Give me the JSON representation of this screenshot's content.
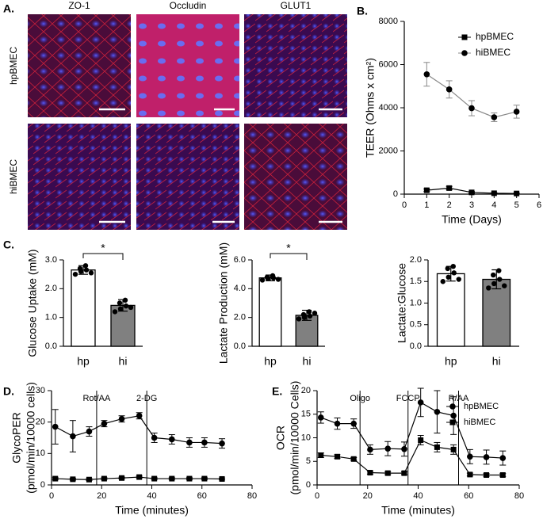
{
  "panel_a": {
    "label": "A.",
    "columns": [
      "ZO-1",
      "Occludin",
      "GLUT1"
    ],
    "rows": [
      "hpBMEC",
      "hiBMEC"
    ]
  },
  "chart_data": [
    {
      "type": "line",
      "panel_label": "B.",
      "x_label": "Time (Days)",
      "y_label": "TEER (Ohms x cm²)",
      "x": [
        1,
        2,
        3,
        4,
        5
      ],
      "xlim": [
        0,
        6
      ],
      "xticks": [
        0,
        1,
        2,
        3,
        4,
        5,
        6
      ],
      "ylim": [
        0,
        8000
      ],
      "yticks": [
        0,
        2000,
        4000,
        6000,
        8000
      ],
      "legend": "upper right",
      "series": [
        {
          "name": "hpBMEC",
          "marker": "square",
          "color": "#000000",
          "line_color": "#000000",
          "values": [
            180,
            280,
            80,
            40,
            30
          ],
          "errors": [
            60,
            80,
            40,
            30,
            20
          ]
        },
        {
          "name": "hiBMEC",
          "marker": "circle",
          "color": "#000000",
          "line_color": "#888888",
          "values": [
            5550,
            4850,
            3980,
            3560,
            3820
          ],
          "errors": [
            550,
            400,
            350,
            200,
            300
          ]
        }
      ]
    },
    {
      "type": "bar",
      "panel_label": "C.",
      "y_label": "Glucose Uptake (mM)",
      "categories": [
        "hp",
        "hi"
      ],
      "values": [
        2.65,
        1.42
      ],
      "errors": [
        0.15,
        0.2
      ],
      "colors": [
        "#ffffff",
        "#808080"
      ],
      "points": [
        [
          2.5,
          2.6,
          2.65,
          2.7,
          2.8,
          2.55
        ],
        [
          1.2,
          1.3,
          1.4,
          1.5,
          1.6,
          1.35
        ]
      ],
      "ylim": [
        0,
        3
      ],
      "yticks": [
        {
          "value": 0,
          "label": "0.0"
        },
        {
          "value": 1,
          "label": "1.0"
        },
        {
          "value": 2,
          "label": "2.0"
        },
        {
          "value": 3,
          "label": "3.0"
        }
      ],
      "significance": "*"
    },
    {
      "type": "bar",
      "y_label": "Lactate Production (mM)",
      "categories": [
        "hp",
        "hi"
      ],
      "values": [
        4.75,
        2.15
      ],
      "errors": [
        0.2,
        0.35
      ],
      "colors": [
        "#ffffff",
        "#808080"
      ],
      "points": [
        [
          4.6,
          4.7,
          4.75,
          4.8,
          4.9,
          4.65
        ],
        [
          1.9,
          2.0,
          2.1,
          2.2,
          2.4,
          2.3
        ]
      ],
      "ylim": [
        0,
        6
      ],
      "yticks": [
        {
          "value": 0,
          "label": "0.0"
        },
        {
          "value": 2,
          "label": "2.0"
        },
        {
          "value": 4,
          "label": "4.0"
        },
        {
          "value": 6,
          "label": "6.0"
        }
      ],
      "significance": "*"
    },
    {
      "type": "bar",
      "y_label": "Lactate:Glucose",
      "categories": [
        "hp",
        "hi"
      ],
      "values": [
        1.68,
        1.55
      ],
      "errors": [
        0.17,
        0.22
      ],
      "colors": [
        "#ffffff",
        "#808080"
      ],
      "points": [
        [
          1.5,
          1.6,
          1.7,
          1.8,
          1.85,
          1.55
        ],
        [
          1.35,
          1.45,
          1.55,
          1.65,
          1.75,
          1.4
        ]
      ],
      "ylim": [
        0,
        2
      ],
      "yticks": [
        {
          "value": 0,
          "label": "0.0"
        },
        {
          "value": 0.5,
          "label": "0.5"
        },
        {
          "value": 1,
          "label": "1.0"
        },
        {
          "value": 1.5,
          "label": "1.5"
        },
        {
          "value": 2,
          "label": "2.0"
        }
      ]
    },
    {
      "type": "line",
      "panel_label": "D.",
      "x_label": "Time (minutes)",
      "y_label": [
        "GlycoPER",
        "(pmol/min/10000 cells)"
      ],
      "x": [
        1.5,
        8.5,
        15,
        21,
        28,
        35,
        41,
        48,
        55,
        61,
        68
      ],
      "xlim": [
        0,
        80
      ],
      "xticks": [
        0,
        20,
        40,
        60,
        80
      ],
      "ylim": [
        0,
        30
      ],
      "yticks": [
        0,
        10,
        20,
        30
      ],
      "annotations": [
        {
          "x": 18,
          "label": "Rot/AA"
        },
        {
          "x": 38,
          "label": "2-DG"
        }
      ],
      "series": [
        {
          "marker": "circle",
          "color": "#000000",
          "line_color": "#000000",
          "values": [
            18.5,
            15.5,
            17,
            19.5,
            21,
            22,
            15,
            14.5,
            13.5,
            13.5,
            13.2
          ],
          "errors": [
            5.5,
            5,
            1.5,
            1,
            1,
            1,
            1.5,
            1.5,
            1.5,
            1.5,
            1.5
          ]
        },
        {
          "marker": "square",
          "color": "#000000",
          "line_color": "#000000",
          "values": [
            2,
            1.8,
            1.7,
            2,
            2.2,
            2.5,
            2,
            2,
            2,
            2,
            1.9
          ],
          "errors": [
            0.3,
            0.3,
            0.3,
            0.3,
            0.3,
            0.3,
            0.3,
            0.3,
            0.3,
            0.3,
            0.3
          ]
        }
      ]
    },
    {
      "type": "line",
      "panel_label": "E.",
      "x_label": "Time (minutes)",
      "y_label": [
        "OCR",
        "(pmol/min/10000 Cells)"
      ],
      "x": [
        1.5,
        8,
        14.5,
        21,
        28,
        34.5,
        41,
        47.5,
        54,
        60.5,
        67,
        73.5
      ],
      "xlim": [
        0,
        80
      ],
      "xticks": [
        0,
        20,
        40,
        60,
        80
      ],
      "ylim": [
        0,
        20
      ],
      "yticks": [
        0,
        5,
        10,
        15,
        20
      ],
      "legend": "upper right",
      "annotations": [
        {
          "x": 17,
          "label": "Oligo"
        },
        {
          "x": 36,
          "label": "FCCP"
        },
        {
          "x": 56,
          "label": "R/AA"
        }
      ],
      "series": [
        {
          "name": "hpBMEC",
          "marker": "circle",
          "color": "#000000",
          "line_color": "#000000",
          "values": [
            14.3,
            13,
            13,
            7.5,
            7.7,
            7.6,
            17.5,
            15.5,
            14.7,
            6,
            5.9,
            5.7
          ],
          "errors": [
            1.2,
            1.2,
            1,
            1,
            1.5,
            1.5,
            3,
            4.5,
            4,
            1.5,
            1.5,
            1.5
          ]
        },
        {
          "name": "hiBMEC",
          "marker": "square",
          "color": "#000000",
          "line_color": "#000000",
          "values": [
            6.3,
            6,
            5.5,
            2.6,
            2.5,
            2.5,
            9.5,
            8,
            7.5,
            2.2,
            2.1,
            2.1
          ],
          "errors": [
            0.5,
            0.4,
            0.3,
            0.3,
            0.3,
            0.3,
            1,
            1,
            1,
            0.3,
            0.3,
            0.3
          ]
        }
      ]
    }
  ]
}
